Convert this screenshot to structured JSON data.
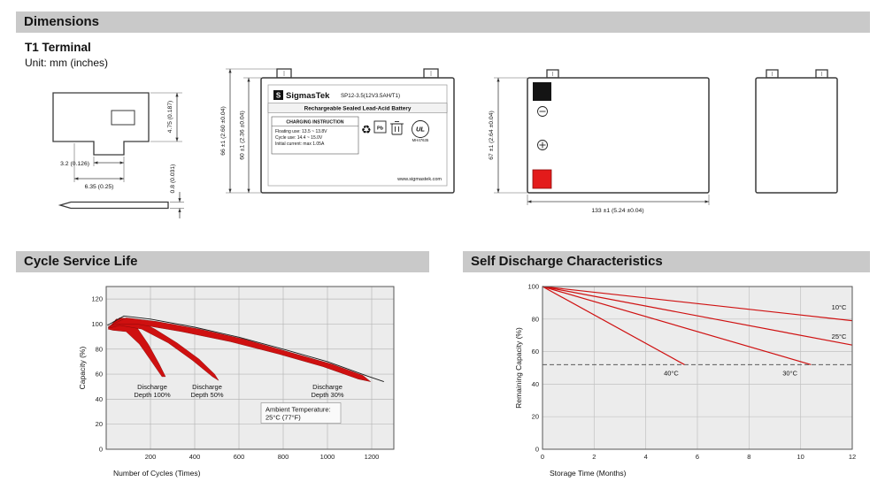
{
  "header": {
    "title": "Dimensions"
  },
  "terminal_section": {
    "title": "T1 Terminal",
    "unit": "Unit: mm (inches)",
    "dims": {
      "height": "4.75 (0.187)",
      "width_small": "3.2 (0.126)",
      "width_large": "6.35 (0.25)",
      "thickness": "0.8 (0.031)"
    }
  },
  "front_view": {
    "height_outer": "66 ±1 (2.60 ±0.04)",
    "height_inner": "60 ±1 (2.36 ±0.04)",
    "label": {
      "logo_letter": "S",
      "brand": "SigmasTek",
      "model": "SP12-3.5(12V3.5AH/T1)",
      "battery_type": "Rechargeable Sealed Lead-Acid Battery",
      "charging_title": "CHARGING INSTRUCTION",
      "charging_line1": "Floating use: 13.5 ~ 13.8V",
      "charging_line2": "Cycle use: 14.4 ~ 15.0V",
      "charging_line3": "Initial current: max 1.05A",
      "recycle_icon": "♻",
      "pb": "Pb",
      "ul_mark": "UL",
      "ul_code": "MH47635",
      "website": "www.sigmastek.com"
    }
  },
  "side_view": {
    "height": "67 ±1 (2.64 ±0.04)",
    "width": "133 ±1 (5.24 ±0.04)"
  },
  "cycle_section": {
    "title": "Cycle Service Life"
  },
  "self_discharge_section": {
    "title": "Self Discharge Characteristics"
  },
  "chart_data": [
    {
      "type": "area",
      "title": "Cycle Service Life",
      "xlabel": "Number of Cycles (Times)",
      "ylabel": "Capacity (%)",
      "xlim": [
        0,
        1300
      ],
      "ylim": [
        0,
        130
      ],
      "xticks": [
        200,
        400,
        600,
        800,
        1000,
        1200
      ],
      "yticks": [
        0,
        20,
        40,
        60,
        80,
        100,
        120
      ],
      "plot_bg": "#ececec",
      "grid_color": "#b8b8b8",
      "series_color": "#cf1010",
      "bands": [
        {
          "name": "Discharge Depth 100%",
          "points": [
            [
              8,
              96
            ],
            [
              45,
              104
            ],
            [
              90,
              104
            ],
            [
              140,
              97
            ],
            [
              190,
              84
            ],
            [
              240,
              68
            ],
            [
              268,
              58
            ],
            [
              252,
              58
            ],
            [
              205,
              70
            ],
            [
              150,
              84
            ],
            [
              90,
              94
            ],
            [
              30,
              95
            ]
          ]
        },
        {
          "name": "Discharge Depth 50%",
          "points": [
            [
              8,
              97
            ],
            [
              60,
              105
            ],
            [
              130,
              104
            ],
            [
              220,
              96
            ],
            [
              320,
              85
            ],
            [
              420,
              72
            ],
            [
              490,
              60
            ],
            [
              508,
              55
            ],
            [
              480,
              58
            ],
            [
              390,
              71
            ],
            [
              280,
              85
            ],
            [
              160,
              96
            ],
            [
              60,
              99
            ],
            [
              20,
              97
            ]
          ]
        },
        {
          "name": "Discharge Depth 30%",
          "points": [
            [
              8,
              98
            ],
            [
              90,
              105
            ],
            [
              230,
              102
            ],
            [
              420,
              96
            ],
            [
              620,
              88
            ],
            [
              820,
              78
            ],
            [
              1020,
              68
            ],
            [
              1160,
              59
            ],
            [
              1195,
              54
            ],
            [
              1140,
              56
            ],
            [
              980,
              66
            ],
            [
              780,
              76
            ],
            [
              560,
              86
            ],
            [
              340,
              94
            ],
            [
              140,
              100
            ],
            [
              50,
              100
            ]
          ]
        }
      ],
      "outline": [
        [
          5,
          99
        ],
        [
          80,
          106.5
        ],
        [
          200,
          104
        ],
        [
          400,
          97.5
        ],
        [
          600,
          89.5
        ],
        [
          800,
          80
        ],
        [
          1000,
          70
        ],
        [
          1180,
          58.5
        ],
        [
          1255,
          54
        ]
      ],
      "labels": [
        {
          "lines": [
            "Discharge",
            "Depth 100%"
          ],
          "x": 208,
          "y": 48,
          "align": "middle"
        },
        {
          "lines": [
            "Discharge",
            "Depth 50%"
          ],
          "x": 456,
          "y": 48,
          "align": "middle"
        },
        {
          "lines": [
            "Discharge",
            "Depth 30%"
          ],
          "x": 1000,
          "y": 48,
          "align": "middle"
        },
        {
          "lines": [
            "Ambient Temperature:",
            "25°C (77°F)"
          ],
          "x": 720,
          "y": 30,
          "align": "start",
          "box": true
        }
      ]
    },
    {
      "type": "line",
      "title": "Self Discharge Characteristics",
      "xlabel": "Storage Time (Months)",
      "ylabel": "Remaining Capacity (%)",
      "xlim": [
        0,
        12
      ],
      "ylim": [
        0,
        100
      ],
      "xticks": [
        0,
        2,
        4,
        6,
        8,
        10,
        12
      ],
      "yticks": [
        0,
        20,
        40,
        60,
        80,
        100
      ],
      "plot_bg": "#ececec",
      "grid_color": "#c2c2c2",
      "series_color": "#cf1010",
      "series": [
        {
          "name": "10°C",
          "points": [
            [
              0,
              100
            ],
            [
              12,
              79
            ]
          ]
        },
        {
          "name": "25°C",
          "points": [
            [
              0,
              100
            ],
            [
              12,
              64
            ]
          ]
        },
        {
          "name": "30°C",
          "points": [
            [
              0,
              100
            ],
            [
              10.4,
              52
            ]
          ]
        },
        {
          "name": "40°C",
          "points": [
            [
              0,
              100
            ],
            [
              5.5,
              52
            ]
          ]
        }
      ],
      "dashed_line_y": 52,
      "labels": [
        {
          "lines": [
            "10°C"
          ],
          "x": 11.2,
          "y": 86,
          "align": "start"
        },
        {
          "lines": [
            "25°C"
          ],
          "x": 11.2,
          "y": 68,
          "align": "start"
        },
        {
          "lines": [
            "30°C"
          ],
          "x": 9.3,
          "y": 45.5,
          "align": "start"
        },
        {
          "lines": [
            "40°C"
          ],
          "x": 4.7,
          "y": 45.5,
          "align": "start"
        }
      ]
    }
  ]
}
